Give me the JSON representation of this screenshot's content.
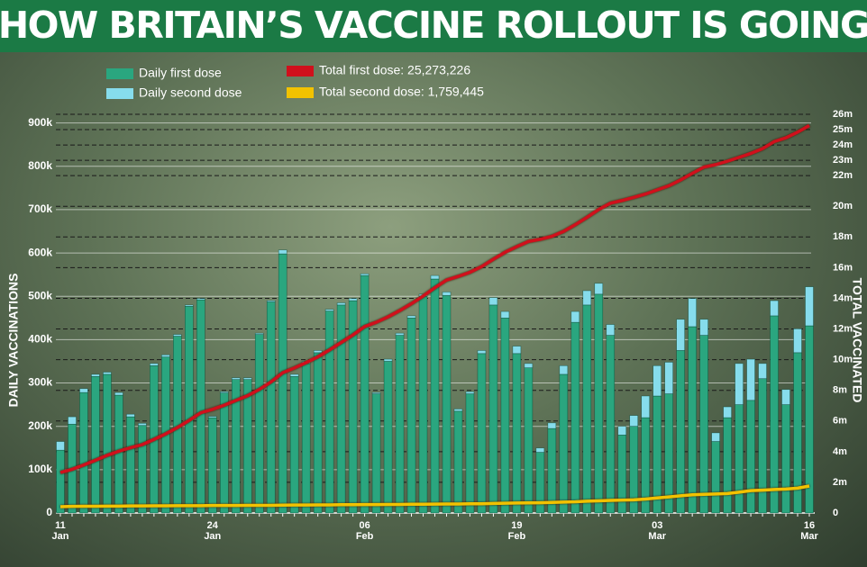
{
  "chart_data": {
    "type": "bar",
    "title": "HOW BRITAIN’S VACCINE ROLLOUT IS GOING",
    "y_label": "DAILY VACCINATIONS",
    "y2_label": "TOTAL VACCINATED",
    "legend": "top-left",
    "grid": true,
    "categories": [
      "11\nJan",
      null,
      null,
      null,
      null,
      null,
      null,
      null,
      null,
      null,
      null,
      null,
      null,
      "24\nJan",
      null,
      null,
      null,
      null,
      null,
      null,
      null,
      null,
      null,
      null,
      null,
      null,
      "06\nFeb",
      null,
      null,
      null,
      null,
      null,
      null,
      null,
      null,
      null,
      null,
      null,
      null,
      "19\nFeb",
      null,
      null,
      null,
      null,
      null,
      null,
      null,
      null,
      null,
      null,
      null,
      "03\nMar",
      null,
      null,
      null,
      null,
      null,
      null,
      null,
      null,
      null,
      null,
      null,
      null,
      "16\nMar"
    ],
    "ylim": [
      0,
      920
    ],
    "yticks": [
      0,
      {
        "value": 100,
        "label": "100k"
      },
      {
        "value": 200,
        "label": "200k"
      },
      {
        "value": 300,
        "label": "300k"
      },
      {
        "value": 400,
        "label": "400k"
      },
      {
        "value": 500,
        "label": "500k"
      },
      {
        "value": 600,
        "label": "600k"
      },
      {
        "value": 700,
        "label": "700k"
      },
      {
        "value": 800,
        "label": "800k"
      },
      {
        "value": 900,
        "label": "900k"
      }
    ],
    "y2lim": [
      0,
      26
    ],
    "y2ticks": [
      0,
      {
        "value": 2,
        "label": "2m"
      },
      {
        "value": 4,
        "label": "4m"
      },
      {
        "value": 6,
        "label": "6m"
      },
      {
        "value": 8,
        "label": "8m"
      },
      {
        "value": 10,
        "label": "10m"
      },
      {
        "value": 12,
        "label": "12m"
      },
      {
        "value": 14,
        "label": "14m"
      },
      {
        "value": 16,
        "label": "16m"
      },
      {
        "value": 18,
        "label": "18m"
      },
      {
        "value": 20,
        "label": "20m"
      },
      {
        "value": 22,
        "label": "22m"
      },
      {
        "value": 23,
        "label": "23m"
      },
      {
        "value": 24,
        "label": "24m"
      },
      {
        "value": 25,
        "label": "25m"
      },
      {
        "value": 26,
        "label": "26m"
      }
    ],
    "series": [
      {
        "name": "Daily first dose",
        "type": "bar",
        "color": "#2aa67f",
        "values": [
          145,
          205,
          278,
          315,
          320,
          272,
          222,
          202,
          340,
          360,
          408,
          477,
          492,
          220,
          277,
          308,
          308,
          412,
          487,
          598,
          315,
          345,
          370,
          466,
          480,
          490,
          548,
          275,
          350,
          410,
          450,
          500,
          540,
          502,
          235,
          275,
          368,
          480,
          450,
          368,
          335,
          140,
          195,
          320,
          440,
          480,
          505,
          410,
          180,
          200,
          220,
          270,
          275,
          375,
          430,
          410,
          165,
          220,
          250,
          260,
          310,
          455,
          250,
          370,
          432
        ]
      },
      {
        "name": "Daily second dose",
        "type": "bar",
        "color": "#86dcec",
        "values": [
          20,
          17,
          9,
          5,
          5,
          6,
          6,
          5,
          5,
          5,
          4,
          3,
          3,
          3,
          3,
          4,
          4,
          3,
          3,
          9,
          5,
          5,
          5,
          4,
          5,
          5,
          4,
          3,
          5,
          5,
          5,
          5,
          8,
          8,
          5,
          5,
          7,
          17,
          15,
          17,
          10,
          10,
          13,
          20,
          25,
          33,
          25,
          25,
          20,
          25,
          50,
          70,
          73,
          72,
          65,
          37,
          20,
          25,
          95,
          95,
          35,
          35,
          35,
          55,
          90
        ]
      },
      {
        "name": "Total first dose: 25,273,226",
        "type": "line",
        "axis": "y2",
        "color": "#d0101c",
        "values": [
          2.64,
          2.85,
          3.13,
          3.44,
          3.76,
          4.03,
          4.26,
          4.46,
          4.8,
          5.16,
          5.57,
          6.04,
          6.54,
          6.76,
          7.03,
          7.34,
          7.65,
          8.06,
          8.55,
          9.15,
          9.46,
          9.81,
          10.18,
          10.64,
          11.12,
          11.61,
          12.16,
          12.44,
          12.79,
          13.2,
          13.65,
          14.15,
          14.69,
          15.19,
          15.43,
          15.7,
          16.07,
          16.55,
          17,
          17.37,
          17.71,
          17.85,
          18.04,
          18.36,
          18.8,
          19.28,
          19.79,
          20.2,
          20.38,
          20.58,
          20.8,
          21.07,
          21.34,
          21.72,
          22.15,
          22.56,
          22.72,
          22.94,
          23.19,
          23.45,
          23.76,
          24.22,
          24.47,
          24.84,
          25.27
        ]
      },
      {
        "name": "Total second dose: 1,759,445",
        "type": "line",
        "axis": "y2",
        "color": "#f2c200",
        "values": [
          0.41,
          0.43,
          0.44,
          0.44,
          0.45,
          0.45,
          0.46,
          0.46,
          0.47,
          0.47,
          0.48,
          0.48,
          0.48,
          0.49,
          0.49,
          0.49,
          0.5,
          0.5,
          0.5,
          0.51,
          0.52,
          0.52,
          0.53,
          0.53,
          0.54,
          0.54,
          0.55,
          0.55,
          0.56,
          0.56,
          0.57,
          0.57,
          0.58,
          0.59,
          0.59,
          0.6,
          0.6,
          0.62,
          0.64,
          0.65,
          0.66,
          0.67,
          0.69,
          0.71,
          0.73,
          0.77,
          0.79,
          0.82,
          0.84,
          0.86,
          0.91,
          0.98,
          1.05,
          1.12,
          1.19,
          1.22,
          1.24,
          1.27,
          1.36,
          1.46,
          1.49,
          1.53,
          1.56,
          1.62,
          1.76
        ]
      }
    ]
  }
}
